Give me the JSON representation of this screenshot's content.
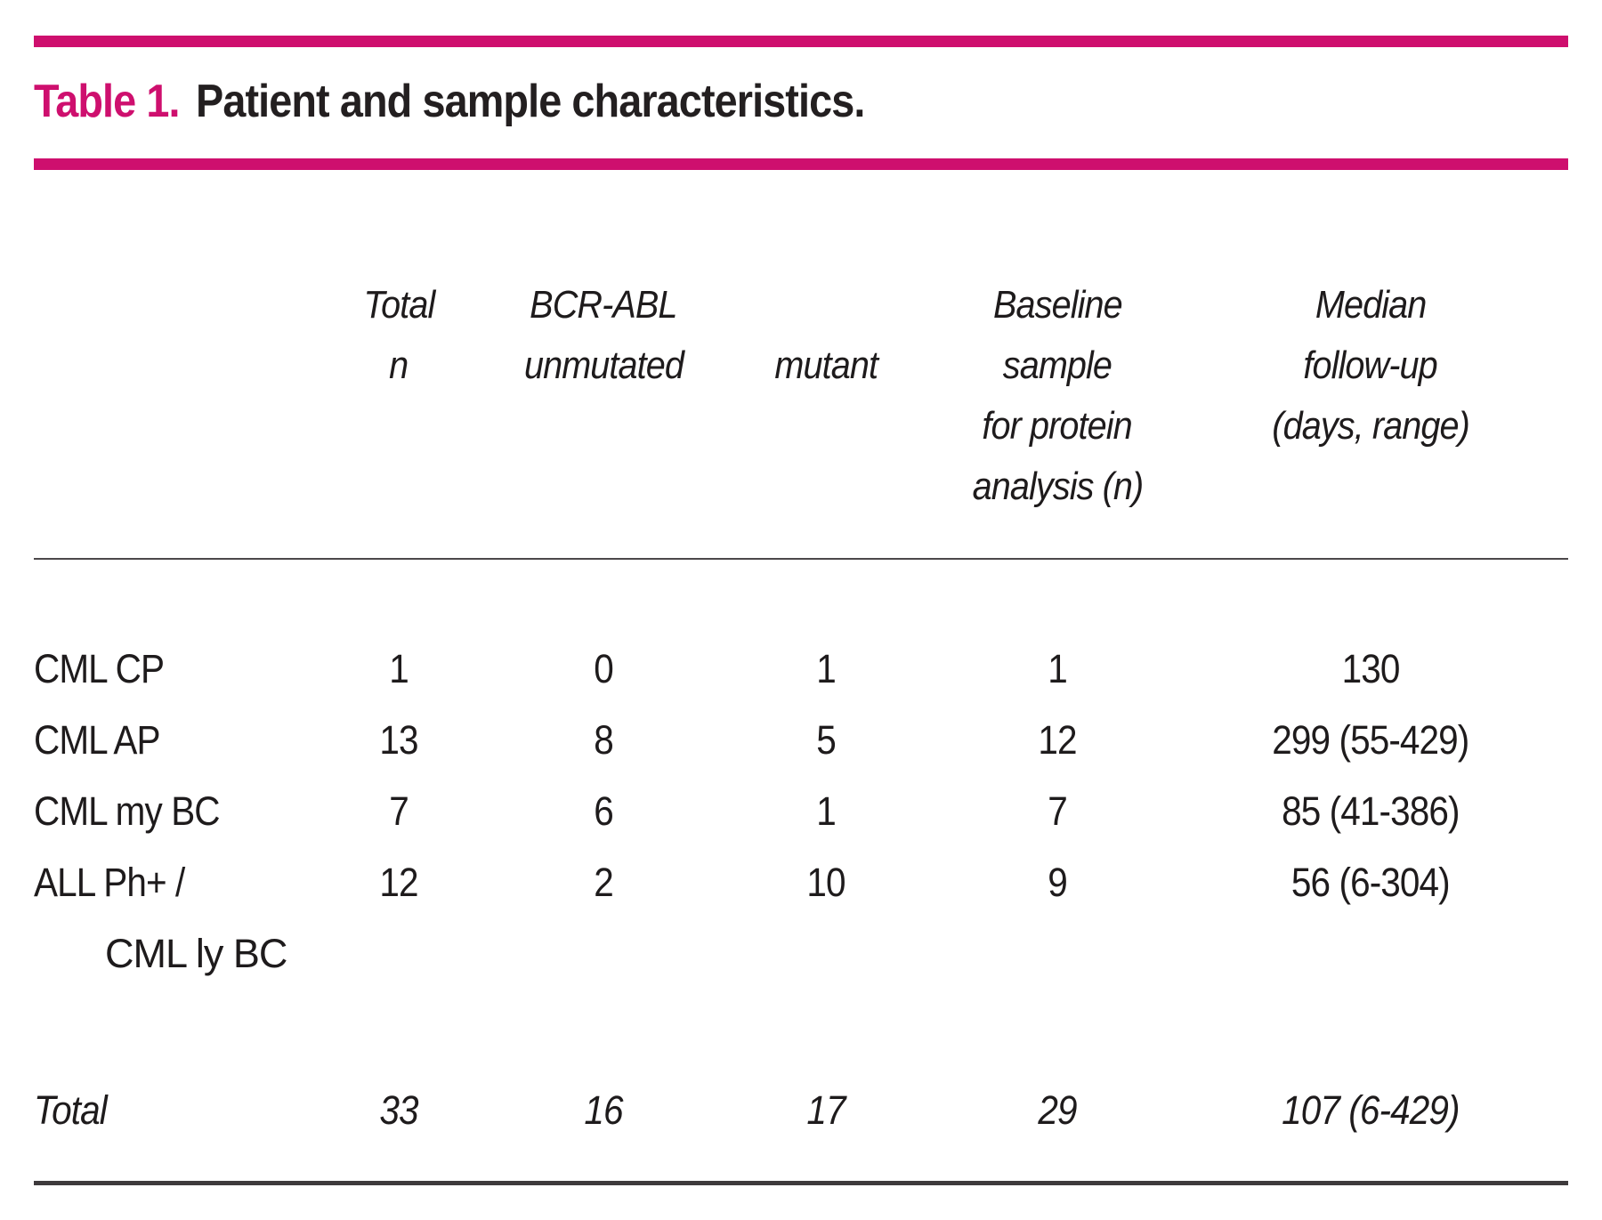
{
  "accent_color": "#ce0f6e",
  "title": {
    "label": "Table 1.",
    "text": " Patient and sample characteristics."
  },
  "chart_data": {
    "type": "table",
    "title": "Table 1. Patient and sample characteristics.",
    "columns": [
      "",
      "Total n",
      "BCR-ABL unmutated",
      "mutant",
      "Baseline sample for protein analysis (n)",
      "Median follow-up (days, range)"
    ],
    "rows": [
      [
        "CML CP",
        1,
        0,
        1,
        1,
        "130"
      ],
      [
        "CML AP",
        13,
        8,
        5,
        12,
        "299 (55-429)"
      ],
      [
        "CML my BC",
        7,
        6,
        1,
        7,
        "85 (41-386)"
      ],
      [
        "ALL Ph+ / CML ly BC",
        12,
        2,
        10,
        9,
        "56 (6-304)"
      ],
      [
        "Total",
        33,
        16,
        17,
        29,
        "107 (6-429)"
      ]
    ]
  },
  "header": [
    {
      "lines": [
        "Total",
        "n",
        "",
        ""
      ]
    },
    {
      "lines": [
        "BCR-ABL",
        "unmutated",
        "",
        ""
      ]
    },
    {
      "lines": [
        "",
        "mutant",
        "",
        ""
      ]
    },
    {
      "lines": [
        "Baseline",
        "sample",
        "for protein",
        "analysis (n)"
      ]
    },
    {
      "lines": [
        "Median",
        "follow-up",
        "(days, range)",
        ""
      ]
    }
  ],
  "rows": [
    {
      "label": "CML CP",
      "label2": "",
      "values": [
        "1",
        "0",
        "1",
        "1",
        "130"
      ]
    },
    {
      "label": "CML AP",
      "label2": "",
      "values": [
        "13",
        "8",
        "5",
        "12",
        "299 (55-429)"
      ]
    },
    {
      "label": "CML my BC",
      "label2": "",
      "values": [
        "7",
        "6",
        "1",
        "7",
        "85 (41-386)"
      ]
    },
    {
      "label": "ALL Ph+ /",
      "label2": "CML ly BC",
      "values": [
        "12",
        "2",
        "10",
        "9",
        "56 (6-304)"
      ]
    }
  ],
  "total": {
    "label": "Total",
    "values": [
      "33",
      "16",
      "17",
      "29",
      "107 (6-429)"
    ]
  }
}
